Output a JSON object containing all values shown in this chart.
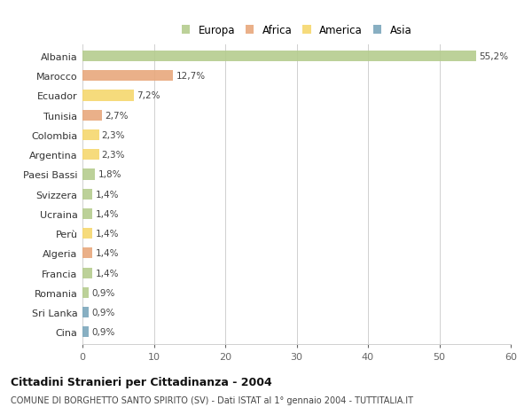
{
  "categories": [
    "Albania",
    "Marocco",
    "Ecuador",
    "Tunisia",
    "Colombia",
    "Argentina",
    "Paesi Bassi",
    "Svizzera",
    "Ucraina",
    "Perù",
    "Algeria",
    "Francia",
    "Romania",
    "Sri Lanka",
    "Cina"
  ],
  "values": [
    55.2,
    12.7,
    7.2,
    2.7,
    2.3,
    2.3,
    1.8,
    1.4,
    1.4,
    1.4,
    1.4,
    1.4,
    0.9,
    0.9,
    0.9
  ],
  "labels": [
    "55,2%",
    "12,7%",
    "7,2%",
    "2,7%",
    "2,3%",
    "2,3%",
    "1,8%",
    "1,4%",
    "1,4%",
    "1,4%",
    "1,4%",
    "1,4%",
    "0,9%",
    "0,9%",
    "0,9%"
  ],
  "colors": [
    "#b5cc8e",
    "#e8a87c",
    "#f5d76e",
    "#e8a87c",
    "#f5d76e",
    "#f5d76e",
    "#b5cc8e",
    "#b5cc8e",
    "#b5cc8e",
    "#f5d76e",
    "#e8a87c",
    "#b5cc8e",
    "#b5cc8e",
    "#7ba7bc",
    "#7ba7bc"
  ],
  "legend_labels": [
    "Europa",
    "Africa",
    "America",
    "Asia"
  ],
  "legend_colors": [
    "#b5cc8e",
    "#e8a87c",
    "#f5d76e",
    "#7ba7bc"
  ],
  "xlim": [
    0,
    60
  ],
  "xticks": [
    0,
    10,
    20,
    30,
    40,
    50,
    60
  ],
  "title": "Cittadini Stranieri per Cittadinanza - 2004",
  "subtitle": "COMUNE DI BORGHETTO SANTO SPIRITO (SV) - Dati ISTAT al 1° gennaio 2004 - TUTTITALIA.IT",
  "bg_color": "#ffffff",
  "grid_color": "#d0d0d0",
  "bar_height": 0.55
}
